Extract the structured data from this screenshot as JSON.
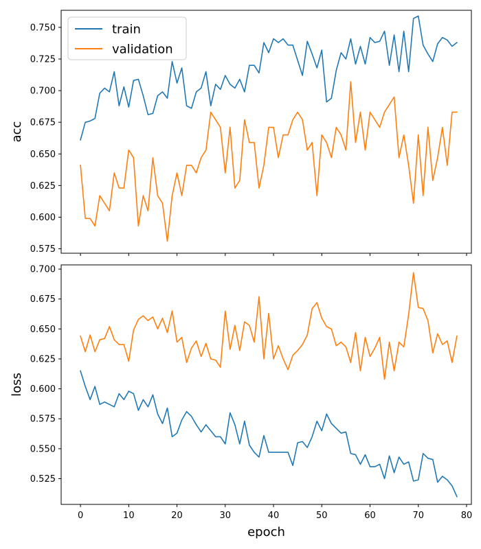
{
  "chart_data": [
    {
      "type": "line",
      "ylabel": "acc",
      "xlabel": "",
      "xlim": [
        -4,
        81
      ],
      "ylim": [
        0.5715,
        0.7635
      ],
      "xticks": [
        0,
        10,
        20,
        30,
        40,
        50,
        60,
        70,
        80
      ],
      "xtick_labels_visible": false,
      "yticks": [
        0.575,
        0.6,
        0.625,
        0.65,
        0.675,
        0.7,
        0.725,
        0.75
      ],
      "ytick_labels": [
        "0.575",
        "0.600",
        "0.625",
        "0.650",
        "0.675",
        "0.700",
        "0.725",
        "0.750"
      ],
      "legend": "top-left",
      "series": [
        {
          "name": "train",
          "color": "#1f77b4",
          "values": [
            0.661,
            0.675,
            0.676,
            0.678,
            0.698,
            0.702,
            0.699,
            0.715,
            0.688,
            0.703,
            0.687,
            0.708,
            0.709,
            0.696,
            0.681,
            0.682,
            0.696,
            0.699,
            0.694,
            0.723,
            0.706,
            0.718,
            0.688,
            0.686,
            0.699,
            0.702,
            0.715,
            0.688,
            0.705,
            0.701,
            0.712,
            0.705,
            0.702,
            0.709,
            0.699,
            0.72,
            0.72,
            0.714,
            0.738,
            0.73,
            0.741,
            0.738,
            0.741,
            0.736,
            0.736,
            0.724,
            0.712,
            0.739,
            0.729,
            0.718,
            0.732,
            0.691,
            0.694,
            0.716,
            0.73,
            0.725,
            0.741,
            0.721,
            0.735,
            0.721,
            0.742,
            0.738,
            0.739,
            0.747,
            0.72,
            0.744,
            0.715,
            0.747,
            0.715,
            0.757,
            0.759,
            0.736,
            0.729,
            0.723,
            0.737,
            0.742,
            0.74,
            0.735,
            0.738
          ]
        },
        {
          "name": "validation",
          "color": "#ff7f0e",
          "values": [
            0.641,
            0.599,
            0.599,
            0.593,
            0.617,
            0.611,
            0.605,
            0.635,
            0.623,
            0.623,
            0.653,
            0.647,
            0.593,
            0.617,
            0.605,
            0.647,
            0.617,
            0.611,
            0.581,
            0.617,
            0.635,
            0.617,
            0.641,
            0.641,
            0.635,
            0.647,
            0.653,
            0.683,
            0.677,
            0.671,
            0.635,
            0.671,
            0.623,
            0.629,
            0.677,
            0.659,
            0.659,
            0.623,
            0.641,
            0.671,
            0.671,
            0.647,
            0.665,
            0.665,
            0.677,
            0.683,
            0.677,
            0.653,
            0.659,
            0.617,
            0.665,
            0.659,
            0.647,
            0.671,
            0.665,
            0.653,
            0.707,
            0.659,
            0.683,
            0.653,
            0.683,
            0.677,
            0.671,
            0.683,
            0.689,
            0.695,
            0.647,
            0.665,
            0.641,
            0.611,
            0.665,
            0.617,
            0.671,
            0.629,
            0.647,
            0.671,
            0.641,
            0.683,
            0.683
          ]
        }
      ]
    },
    {
      "type": "line",
      "ylabel": "loss",
      "xlabel": "epoch",
      "xlim": [
        -4,
        81
      ],
      "ylim": [
        0.5035,
        0.7035
      ],
      "xticks": [
        0,
        10,
        20,
        30,
        40,
        50,
        60,
        70,
        80
      ],
      "xtick_labels": [
        "0",
        "10",
        "20",
        "30",
        "40",
        "50",
        "60",
        "70",
        "80"
      ],
      "yticks": [
        0.525,
        0.55,
        0.575,
        0.6,
        0.625,
        0.65,
        0.675,
        0.7
      ],
      "ytick_labels": [
        "0.525",
        "0.550",
        "0.575",
        "0.600",
        "0.625",
        "0.650",
        "0.675",
        "0.700"
      ],
      "series": [
        {
          "name": "train",
          "color": "#1f77b4",
          "values": [
            0.615,
            0.602,
            0.591,
            0.602,
            0.587,
            0.589,
            0.587,
            0.585,
            0.596,
            0.591,
            0.598,
            0.596,
            0.582,
            0.591,
            0.585,
            0.595,
            0.579,
            0.571,
            0.584,
            0.56,
            0.563,
            0.574,
            0.581,
            0.577,
            0.57,
            0.564,
            0.57,
            0.565,
            0.56,
            0.56,
            0.554,
            0.58,
            0.57,
            0.554,
            0.573,
            0.553,
            0.547,
            0.543,
            0.561,
            0.547,
            0.547,
            0.547,
            0.547,
            0.547,
            0.536,
            0.555,
            0.556,
            0.551,
            0.56,
            0.573,
            0.565,
            0.579,
            0.571,
            0.567,
            0.563,
            0.564,
            0.546,
            0.545,
            0.537,
            0.545,
            0.535,
            0.535,
            0.537,
            0.525,
            0.544,
            0.53,
            0.543,
            0.537,
            0.539,
            0.523,
            0.524,
            0.546,
            0.542,
            0.541,
            0.522,
            0.527,
            0.524,
            0.519,
            0.51
          ]
        },
        {
          "name": "validation",
          "color": "#ff7f0e",
          "values": [
            0.644,
            0.631,
            0.645,
            0.631,
            0.641,
            0.642,
            0.652,
            0.641,
            0.637,
            0.637,
            0.623,
            0.649,
            0.658,
            0.661,
            0.657,
            0.66,
            0.65,
            0.659,
            0.647,
            0.665,
            0.639,
            0.643,
            0.622,
            0.634,
            0.64,
            0.627,
            0.638,
            0.625,
            0.624,
            0.618,
            0.665,
            0.633,
            0.653,
            0.632,
            0.656,
            0.653,
            0.639,
            0.677,
            0.625,
            0.663,
            0.625,
            0.636,
            0.625,
            0.616,
            0.628,
            0.632,
            0.637,
            0.645,
            0.667,
            0.672,
            0.659,
            0.652,
            0.65,
            0.636,
            0.639,
            0.635,
            0.622,
            0.647,
            0.615,
            0.643,
            0.627,
            0.634,
            0.643,
            0.608,
            0.639,
            0.615,
            0.639,
            0.635,
            0.662,
            0.697,
            0.668,
            0.667,
            0.657,
            0.63,
            0.646,
            0.637,
            0.64,
            0.622,
            0.644
          ]
        }
      ]
    }
  ]
}
